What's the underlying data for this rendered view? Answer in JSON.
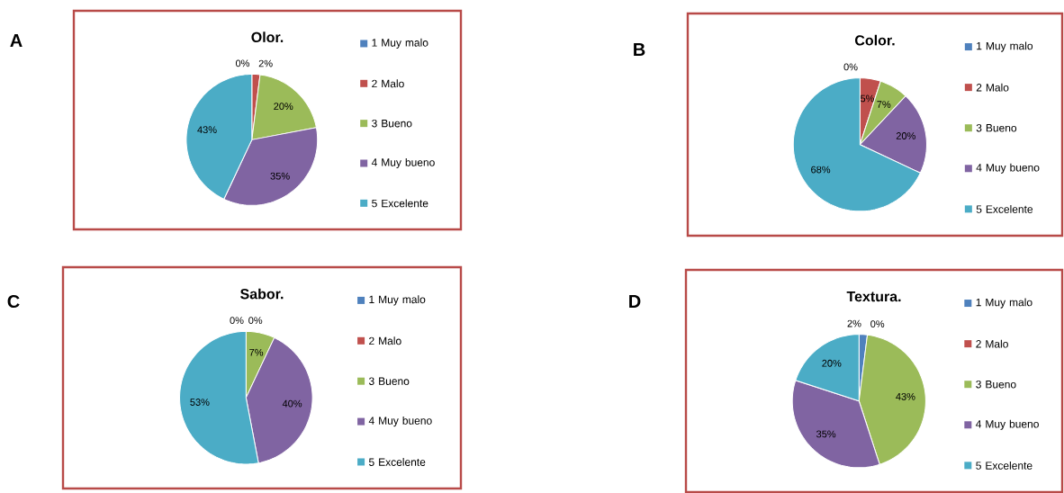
{
  "chart_data": [
    {
      "type": "pie",
      "title": "Olor.",
      "categories": [
        "1 Muy malo",
        "2 Malo",
        "3 Bueno",
        "4 Muy bueno",
        "5 Excelente"
      ],
      "values": [
        0,
        2,
        20,
        35,
        43
      ],
      "value_labels": [
        "0%",
        "2%",
        "20%",
        "35%",
        "43%"
      ],
      "colors": [
        "#4f81bd",
        "#c0504d",
        "#9bbb59",
        "#8064a2",
        "#4bacc6"
      ],
      "legend": "right",
      "annotations": [
        "A"
      ]
    },
    {
      "type": "pie",
      "title": "Color.",
      "categories": [
        "1 Muy malo",
        "2 Malo",
        "3 Bueno",
        "4 Muy bueno",
        "5 Excelente"
      ],
      "values": [
        0,
        5,
        7,
        20,
        68
      ],
      "value_labels": [
        "0%",
        "5%",
        "7%",
        "20%",
        "68%"
      ],
      "colors": [
        "#4f81bd",
        "#c0504d",
        "#9bbb59",
        "#8064a2",
        "#4bacc6"
      ],
      "legend": "right",
      "annotations": [
        "B"
      ]
    },
    {
      "type": "pie",
      "title": "Sabor.",
      "categories": [
        "1 Muy malo",
        "2 Malo",
        "3 Bueno",
        "4 Muy bueno",
        "5 Excelente"
      ],
      "values": [
        0,
        0,
        7,
        40,
        53
      ],
      "value_labels": [
        "0%",
        "0%",
        "7%",
        "40%",
        "53%"
      ],
      "colors": [
        "#4f81bd",
        "#c0504d",
        "#9bbb59",
        "#8064a2",
        "#4bacc6"
      ],
      "legend": "right",
      "annotations": [
        "C"
      ]
    },
    {
      "type": "pie",
      "title": "Textura.",
      "categories": [
        "1 Muy malo",
        "2 Malo",
        "3 Bueno",
        "4 Muy bueno",
        "5 Excelente"
      ],
      "values": [
        2,
        0,
        43,
        35,
        20
      ],
      "value_labels": [
        "2%",
        "0%",
        "43%",
        "35%",
        "20%"
      ],
      "colors": [
        "#4f81bd",
        "#c0504d",
        "#9bbb59",
        "#8064a2",
        "#4bacc6"
      ],
      "legend": "right",
      "annotations": [
        "D"
      ]
    }
  ]
}
